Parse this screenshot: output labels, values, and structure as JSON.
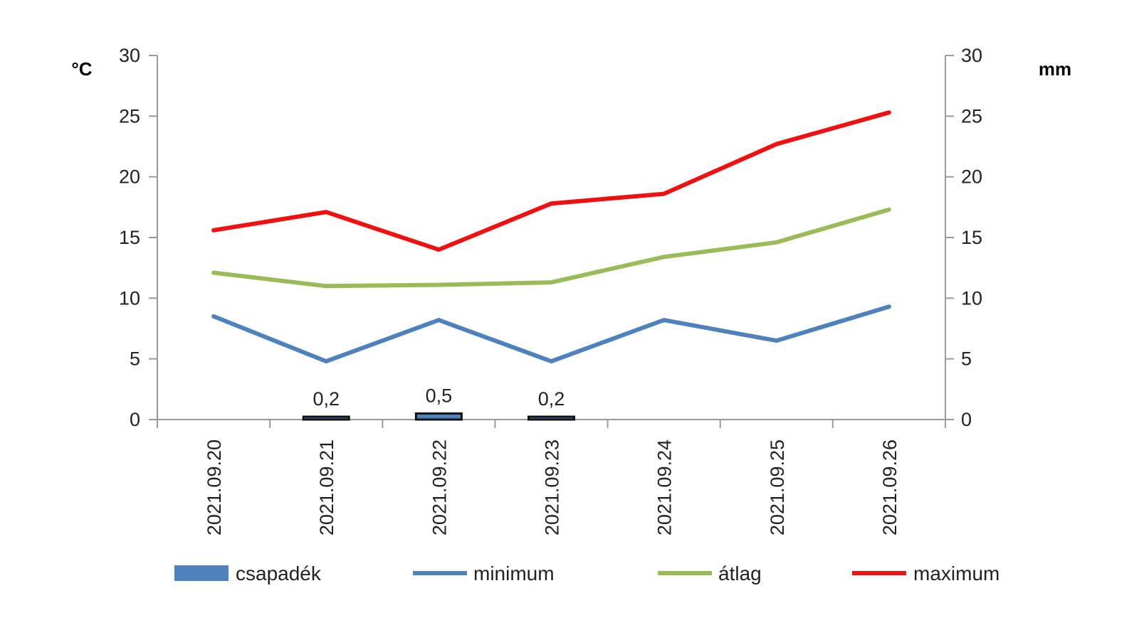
{
  "chart_data": {
    "type": "line",
    "categories": [
      "2021.09.20",
      "2021.09.21",
      "2021.09.22",
      "2021.09.23",
      "2021.09.24",
      "2021.09.25",
      "2021.09.26"
    ],
    "y_left": {
      "label": "°C",
      "ylim": [
        0,
        30
      ],
      "ticks": [
        0,
        5,
        10,
        15,
        20,
        25,
        30
      ]
    },
    "y_right": {
      "label": "mm",
      "ylim": [
        0,
        30
      ],
      "ticks": [
        0,
        5,
        10,
        15,
        20,
        25,
        30
      ]
    },
    "bars": {
      "name": "csapadék",
      "axis": "right",
      "color": "#4f81bd",
      "values": [
        null,
        0.2,
        0.5,
        0.2,
        null,
        null,
        null
      ],
      "labels": [
        "",
        "0,2",
        "0,5",
        "0,2",
        "",
        "",
        ""
      ]
    },
    "series": [
      {
        "name": "minimum",
        "color": "#4f81bd",
        "axis": "left",
        "values": [
          8.5,
          4.8,
          8.2,
          4.8,
          8.2,
          6.5,
          9.3
        ]
      },
      {
        "name": "átlag",
        "color": "#9bbb59",
        "axis": "left",
        "values": [
          12.1,
          11.0,
          11.1,
          11.3,
          13.4,
          14.6,
          17.3
        ]
      },
      {
        "name": "maximum",
        "color": "#ee1111",
        "axis": "left",
        "values": [
          15.6,
          17.1,
          14.0,
          17.8,
          18.6,
          22.7,
          25.3
        ]
      }
    ],
    "legend": {
      "placement": "bottom",
      "items": [
        "csapadék",
        "minimum",
        "átlag",
        "maximum"
      ]
    },
    "grid": false
  }
}
